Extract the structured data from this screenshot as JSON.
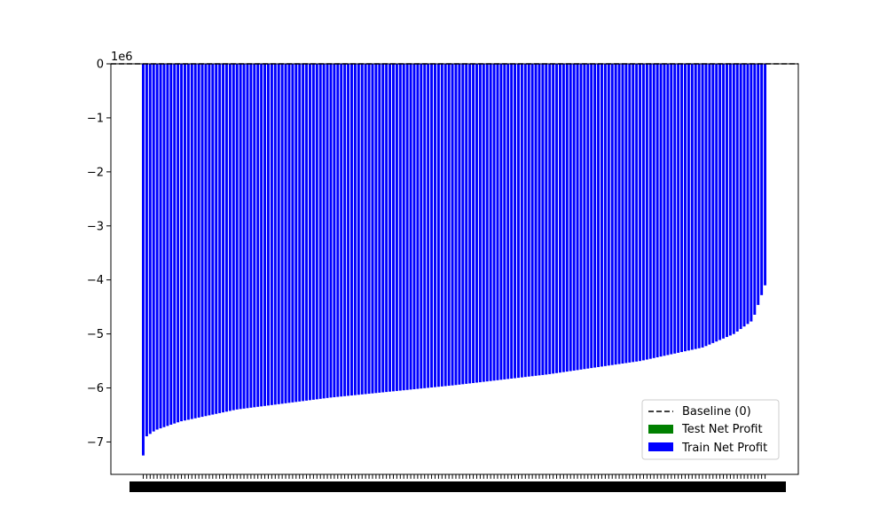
{
  "chart_data": {
    "type": "bar",
    "y_exponent_label": "1e6",
    "ylim": [
      -7.6,
      0.0
    ],
    "yticks": [
      0,
      -1,
      -2,
      -3,
      -4,
      -5,
      -6,
      -7
    ],
    "ytick_labels": [
      "0",
      "−1",
      "−2",
      "−3",
      "−4",
      "−5",
      "−6",
      "−7"
    ],
    "grid": false,
    "legend_position": "lower-right",
    "legend": [
      {
        "label": "Baseline (0)",
        "style": "dashed-line",
        "color": "#000000"
      },
      {
        "label": "Test Net Profit",
        "style": "patch",
        "color": "#008000"
      },
      {
        "label": "Train Net Profit",
        "style": "patch",
        "color": "#0000ff"
      }
    ],
    "baseline_value": 0,
    "series": [
      {
        "name": "Train Net Profit",
        "color": "#0000ff",
        "value_range": [
          -7.25,
          -4.1
        ],
        "sorted": "ascending",
        "shape_anchors": [
          [
            0,
            -7.25
          ],
          [
            0.005,
            -6.9
          ],
          [
            0.02,
            -6.78
          ],
          [
            0.06,
            -6.62
          ],
          [
            0.15,
            -6.4
          ],
          [
            0.3,
            -6.18
          ],
          [
            0.5,
            -5.95
          ],
          [
            0.65,
            -5.75
          ],
          [
            0.8,
            -5.5
          ],
          [
            0.9,
            -5.25
          ],
          [
            0.95,
            -5.0
          ],
          [
            0.98,
            -4.75
          ],
          [
            1.0,
            -4.1
          ]
        ]
      },
      {
        "name": "Test Net Profit",
        "color": "#008000",
        "values": []
      }
    ]
  }
}
